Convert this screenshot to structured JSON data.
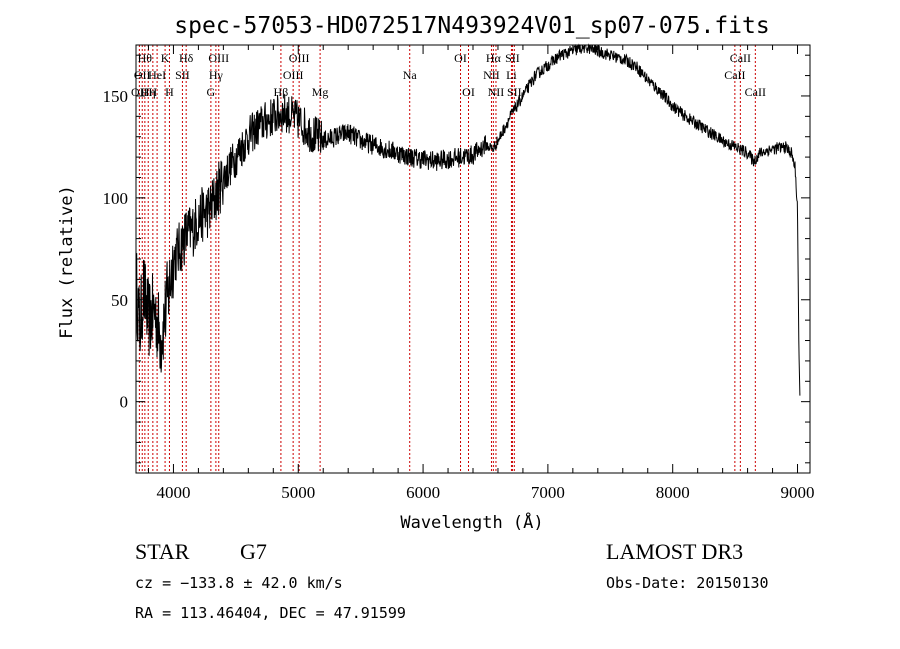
{
  "chart_data": {
    "type": "line",
    "title": "spec-57053-HD072517N493924V01_sp07-075.fits",
    "xlabel": "Wavelength (Å)",
    "ylabel": "Flux (relative)",
    "xlim": [
      3700,
      9100
    ],
    "ylim": [
      -35,
      175
    ],
    "x_ticks": [
      4000,
      5000,
      6000,
      7000,
      8000,
      9000
    ],
    "y_ticks": [
      0,
      50,
      100,
      150
    ],
    "grid": false,
    "series": [
      {
        "values_anchor": [
          [
            3700,
            60
          ],
          [
            3730,
            35
          ],
          [
            3760,
            55
          ],
          [
            3800,
            40
          ],
          [
            3850,
            45
          ],
          [
            3900,
            30
          ],
          [
            3950,
            50
          ],
          [
            4000,
            70
          ],
          [
            4050,
            75
          ],
          [
            4100,
            82
          ],
          [
            4150,
            84
          ],
          [
            4200,
            90
          ],
          [
            4300,
            95
          ],
          [
            4400,
            110
          ],
          [
            4500,
            120
          ],
          [
            4600,
            130
          ],
          [
            4700,
            136
          ],
          [
            4800,
            140
          ],
          [
            4900,
            142
          ],
          [
            5000,
            138
          ],
          [
            5100,
            132
          ],
          [
            5200,
            128
          ],
          [
            5300,
            130
          ],
          [
            5400,
            132
          ],
          [
            5500,
            128
          ],
          [
            5600,
            126
          ],
          [
            5700,
            124
          ],
          [
            5800,
            122
          ],
          [
            5900,
            120
          ],
          [
            6000,
            119
          ],
          [
            6100,
            118
          ],
          [
            6200,
            119
          ],
          [
            6300,
            120
          ],
          [
            6400,
            121
          ],
          [
            6500,
            126
          ],
          [
            6560,
            124
          ],
          [
            6600,
            128
          ],
          [
            6700,
            140
          ],
          [
            6800,
            150
          ],
          [
            6900,
            160
          ],
          [
            7000,
            165
          ],
          [
            7100,
            170
          ],
          [
            7200,
            172
          ],
          [
            7300,
            174
          ],
          [
            7400,
            172
          ],
          [
            7500,
            170
          ],
          [
            7600,
            168
          ],
          [
            7700,
            165
          ],
          [
            7800,
            158
          ],
          [
            7900,
            152
          ],
          [
            8000,
            145
          ],
          [
            8100,
            140
          ],
          [
            8200,
            136
          ],
          [
            8300,
            132
          ],
          [
            8400,
            128
          ],
          [
            8500,
            125
          ],
          [
            8600,
            122
          ],
          [
            8650,
            118
          ],
          [
            8700,
            122
          ],
          [
            8800,
            124
          ],
          [
            8900,
            125
          ],
          [
            8950,
            122
          ],
          [
            8980,
            115
          ],
          [
            9000,
            95
          ],
          [
            9010,
            30
          ],
          [
            9020,
            0
          ]
        ],
        "noise_regions": [
          {
            "from": 3700,
            "to": 4000,
            "amplitude": 20
          },
          {
            "from": 4000,
            "to": 4400,
            "amplitude": 14
          },
          {
            "from": 4400,
            "to": 5200,
            "amplitude": 10
          },
          {
            "from": 5200,
            "to": 6500,
            "amplitude": 5
          },
          {
            "from": 6500,
            "to": 9000,
            "amplitude": 3
          }
        ]
      }
    ],
    "spectral_lines": [
      {
        "wavelength": 3727,
        "label": "OII",
        "row": 3
      },
      {
        "wavelength": 3750,
        "label": "OII",
        "row": 2
      },
      {
        "wavelength": 3771,
        "label": "Hθ",
        "row": 1
      },
      {
        "wavelength": 3798,
        "label": "Hη",
        "row": 3
      },
      {
        "wavelength": 3835,
        "label": "H",
        "row": 3
      },
      {
        "wavelength": 3869,
        "label": "HeI",
        "row": 2
      },
      {
        "wavelength": 3933,
        "label": "K",
        "row": 1
      },
      {
        "wavelength": 3968,
        "label": "H",
        "row": 3
      },
      {
        "wavelength": 4072,
        "label": "SII",
        "row": 2
      },
      {
        "wavelength": 4102,
        "label": "Hδ",
        "row": 1
      },
      {
        "wavelength": 4300,
        "label": "G",
        "row": 3
      },
      {
        "wavelength": 4340,
        "label": "Hγ",
        "row": 2
      },
      {
        "wavelength": 4363,
        "label": "OIII",
        "row": 1
      },
      {
        "wavelength": 4861,
        "label": "Hβ",
        "row": 3
      },
      {
        "wavelength": 4959,
        "label": "OIII",
        "row": 2
      },
      {
        "wavelength": 5007,
        "label": "OIII",
        "row": 1
      },
      {
        "wavelength": 5175,
        "label": "Mg",
        "row": 3
      },
      {
        "wavelength": 5893,
        "label": "Na",
        "row": 2
      },
      {
        "wavelength": 6300,
        "label": "OI",
        "row": 1
      },
      {
        "wavelength": 6364,
        "label": "OI",
        "row": 3
      },
      {
        "wavelength": 6548,
        "label": "NII",
        "row": 2
      },
      {
        "wavelength": 6563,
        "label": "Hα",
        "row": 1
      },
      {
        "wavelength": 6584,
        "label": "NII",
        "row": 3
      },
      {
        "wavelength": 6708,
        "label": "Li",
        "row": 2
      },
      {
        "wavelength": 6716,
        "label": "SII",
        "row": 1
      },
      {
        "wavelength": 6731,
        "label": "SII",
        "row": 3
      },
      {
        "wavelength": 8498,
        "label": "CaII",
        "row": 2
      },
      {
        "wavelength": 8542,
        "label": "CaII",
        "row": 1
      },
      {
        "wavelength": 8662,
        "label": "CaII",
        "row": 3
      }
    ],
    "line_color": "#000000",
    "marker_color": "#cc0000"
  },
  "info": {
    "object_class": "STAR",
    "subclass": "G7",
    "survey": "LAMOST DR3",
    "redshift": "cz = −133.8 ± 42.0 km/s",
    "obs_date": "Obs-Date: 20150130",
    "coords": "RA = 113.46404, DEC =  47.91599"
  }
}
